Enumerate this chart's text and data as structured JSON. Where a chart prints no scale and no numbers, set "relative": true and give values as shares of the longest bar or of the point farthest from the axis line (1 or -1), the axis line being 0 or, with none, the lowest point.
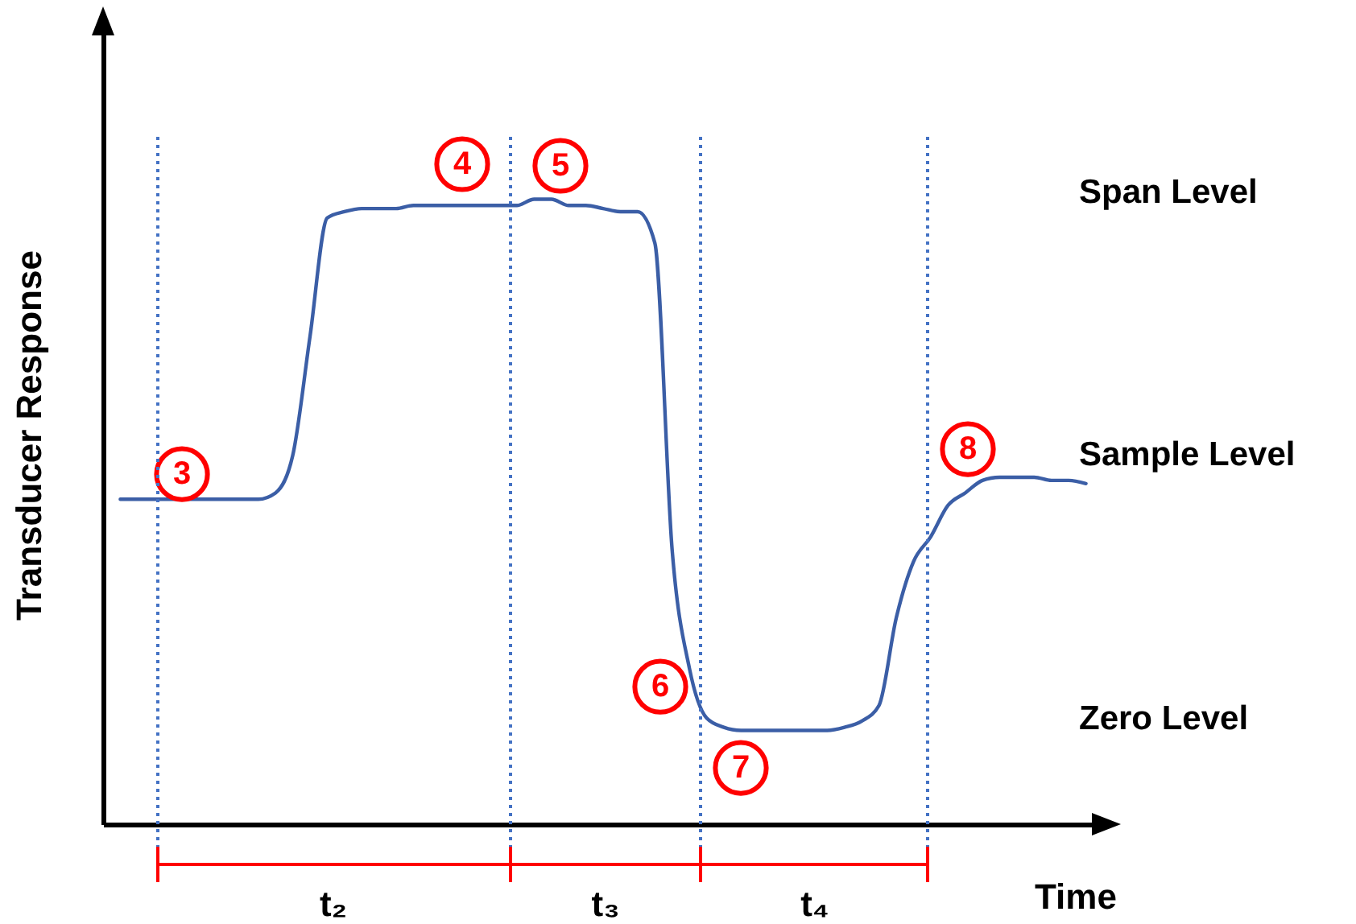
{
  "chart_data": {
    "type": "line",
    "relative": true,
    "xlabel": "Time",
    "ylabel": "Transducer Response",
    "categories": [
      null,
      null,
      null,
      null,
      null,
      null,
      null,
      null,
      null,
      null,
      null,
      null,
      null,
      null,
      null,
      null,
      null,
      null,
      null,
      null,
      null,
      null,
      null,
      null,
      null,
      null,
      null,
      null,
      null,
      null,
      null,
      null,
      null,
      null,
      null,
      null,
      null,
      null,
      null,
      null,
      null,
      null,
      null,
      null,
      null,
      null,
      null,
      null,
      null,
      null,
      null,
      null,
      null,
      null,
      null,
      null,
      null
    ],
    "series": [
      {
        "color": "#3b5ea6",
        "values": [
          0.52,
          0.52,
          0.52,
          0.52,
          0.52,
          0.52,
          0.52,
          0.52,
          0.52,
          0.53,
          0.59,
          0.78,
          0.97,
          0.98,
          0.985,
          0.985,
          0.985,
          0.99,
          0.99,
          0.99,
          0.99,
          0.99,
          0.99,
          0.99,
          1.0,
          1.0,
          0.99,
          0.99,
          0.985,
          0.98,
          0.98,
          0.93,
          0.44,
          0.25,
          0.17,
          0.155,
          0.15,
          0.15,
          0.15,
          0.15,
          0.15,
          0.15,
          0.155,
          0.165,
          0.19,
          0.33,
          0.42,
          0.46,
          0.51,
          0.53,
          0.55,
          0.555,
          0.555,
          0.555,
          0.55,
          0.55,
          0.545
        ]
      }
    ],
    "annotations": [
      {
        "text": "3",
        "y": 0.56
      },
      {
        "text": "6",
        "y": 0.22
      },
      {
        "text": "7",
        "y": 0.09
      },
      {
        "text": "8",
        "y": 0.6
      },
      "4",
      "5",
      "Span Level",
      "Sample Level",
      "Zero Level",
      "t₂",
      "t₃",
      "t₄"
    ]
  }
}
